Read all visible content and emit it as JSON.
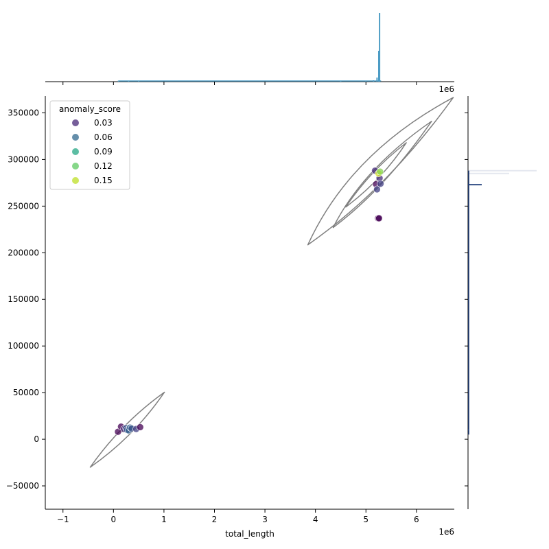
{
  "chart_data": {
    "type": "scatter",
    "title": "",
    "xlabel": "total_length",
    "ylabel": "",
    "x_offset_label": "1e6",
    "x_scale": 1000000,
    "xlim": [
      -1.35,
      6.75
    ],
    "ylim": [
      -75000,
      368000
    ],
    "x_ticks": [
      -1,
      0,
      1,
      2,
      3,
      4,
      5,
      6
    ],
    "x_tick_labels": [
      "−1",
      "0",
      "1",
      "2",
      "3",
      "4",
      "5",
      "6"
    ],
    "y_ticks": [
      -50000,
      0,
      50000,
      100000,
      150000,
      200000,
      250000,
      300000,
      350000
    ],
    "y_tick_labels": [
      "−50000",
      "0",
      "50000",
      "100000",
      "150000",
      "200000",
      "250000",
      "300000",
      "350000"
    ],
    "grid": false,
    "legend": {
      "title": "anomaly_score",
      "placement": "top-left",
      "entries": [
        {
          "label": "0.03",
          "color": "#482878"
        },
        {
          "label": "0.06",
          "color": "#31688e"
        },
        {
          "label": "0.09",
          "color": "#26a784"
        },
        {
          "label": "0.12",
          "color": "#5ec962"
        },
        {
          "label": "0.15",
          "color": "#bddf26"
        }
      ]
    },
    "points": [
      {
        "x": 0.09,
        "y": 8000,
        "score": 0.0
      },
      {
        "x": 0.15,
        "y": 13500,
        "score": 0.0
      },
      {
        "x": 0.21,
        "y": 11000,
        "score": 0.02
      },
      {
        "x": 0.25,
        "y": 12000,
        "score": 0.04
      },
      {
        "x": 0.27,
        "y": 10000,
        "score": 0.04
      },
      {
        "x": 0.3,
        "y": 9500,
        "score": 0.05
      },
      {
        "x": 0.33,
        "y": 12500,
        "score": 0.05
      },
      {
        "x": 0.36,
        "y": 11500,
        "score": 0.04
      },
      {
        "x": 0.45,
        "y": 11000,
        "score": 0.03
      },
      {
        "x": 0.53,
        "y": 13000,
        "score": 0.0
      },
      {
        "x": 5.18,
        "y": 288000,
        "score": 0.02
      },
      {
        "x": 5.2,
        "y": 273500,
        "score": 0.0
      },
      {
        "x": 5.22,
        "y": 268000,
        "score": 0.03
      },
      {
        "x": 5.24,
        "y": 237000,
        "score": 0.0
      },
      {
        "x": 5.26,
        "y": 237000,
        "score": 0.0
      },
      {
        "x": 5.27,
        "y": 280000,
        "score": 0.02
      },
      {
        "x": 5.29,
        "y": 274000,
        "score": 0.03
      },
      {
        "x": 5.25,
        "y": 285000,
        "score": 0.15
      },
      {
        "x": 5.28,
        "y": 287000,
        "score": 0.13
      }
    ],
    "kde_contours": [
      {
        "level": "outer",
        "cluster": "low",
        "center": [
          0.28,
          10000
        ],
        "lo": [
          -0.46,
          -30000
        ],
        "hi": [
          1.01,
          50500
        ],
        "width_y": 5000
      },
      {
        "level": "inner",
        "cluster": "low",
        "center": [
          0.28,
          10500
        ],
        "lo": [
          0.15,
          8000
        ],
        "hi": [
          0.42,
          13000
        ],
        "width_y": 1500
      },
      {
        "level": "outer",
        "cluster": "high",
        "center": [
          5.05,
          287500
        ],
        "lo": [
          3.85,
          208500
        ],
        "hi": [
          6.73,
          366500
        ],
        "width_y": 14000
      },
      {
        "level": "mid",
        "cluster": "high",
        "center": [
          5.15,
          279000
        ],
        "lo": [
          4.35,
          227000
        ],
        "hi": [
          6.3,
          341000
        ],
        "width_y": 8000
      },
      {
        "level": "inner",
        "cluster": "high",
        "center": [
          5.2,
          283000
        ],
        "lo": [
          4.6,
          249000
        ],
        "hi": [
          5.8,
          318000
        ],
        "width_y": 4000
      }
    ],
    "marginal_x": {
      "color": "#4c9cc5",
      "bins": [
        {
          "x": 0.1,
          "h": 0.01
        },
        {
          "x": 0.3,
          "h": 0.012
        },
        {
          "x": 0.5,
          "h": 0.01
        },
        {
          "x": 4.5,
          "h": 0.008
        },
        {
          "x": 5.0,
          "h": 0.012
        },
        {
          "x": 5.15,
          "h": 0.02
        },
        {
          "x": 5.22,
          "h": 0.06
        },
        {
          "x": 5.255,
          "h": 0.45
        },
        {
          "x": 5.27,
          "h": 1.0
        }
      ]
    },
    "marginal_y": {
      "color": "#1f3d7a",
      "bins": [
        {
          "y": 10000,
          "h": 0.01
        },
        {
          "y": 150000,
          "h": 0.01
        },
        {
          "y": 273000,
          "h": 0.2
        },
        {
          "y": 285000,
          "h": 0.6
        },
        {
          "y": 288000,
          "h": 1.0
        }
      ]
    }
  }
}
